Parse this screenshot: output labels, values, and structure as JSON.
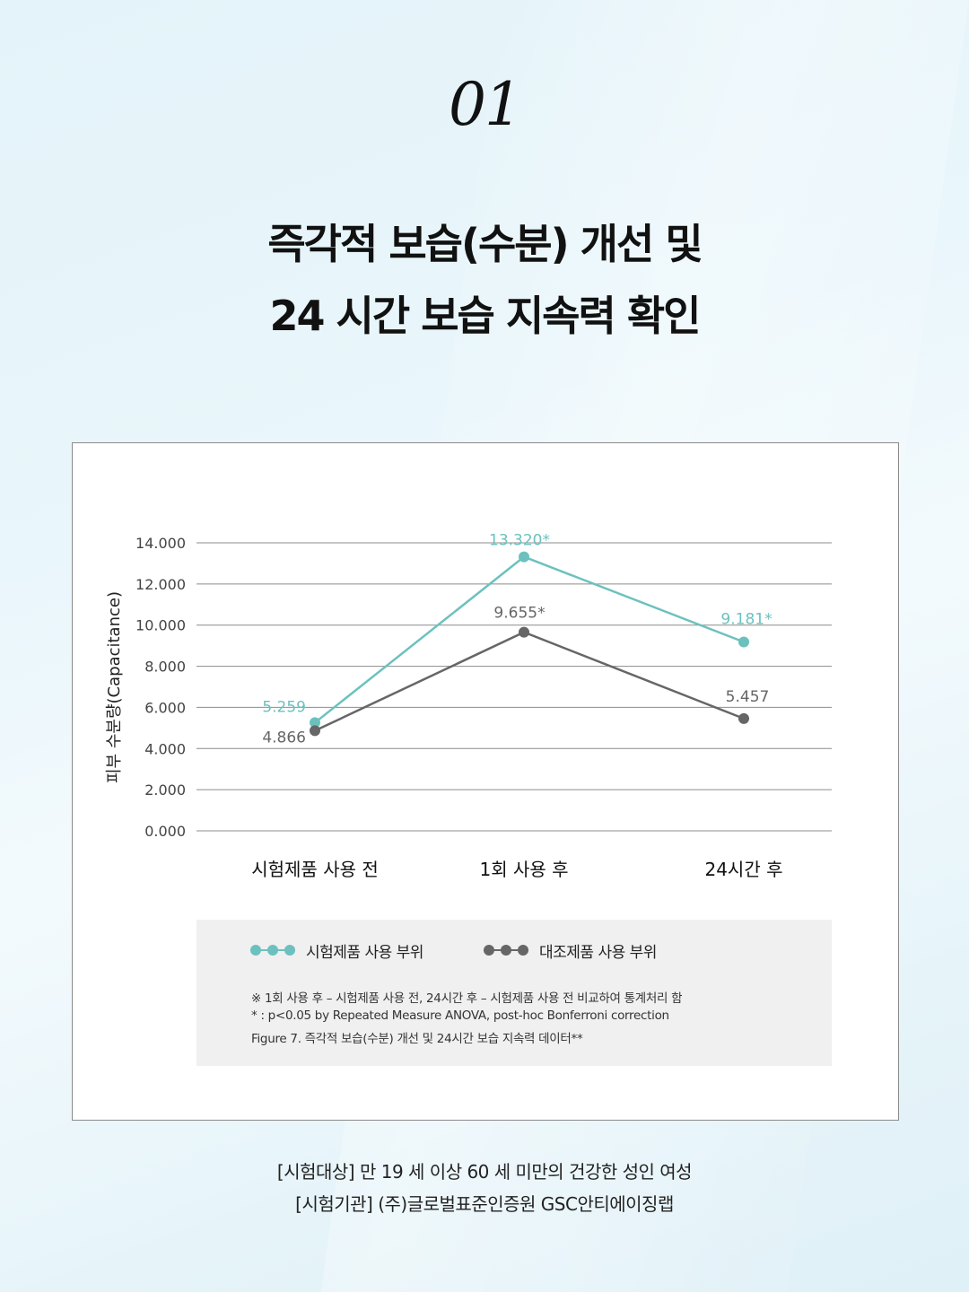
{
  "header": {
    "number": "01",
    "headline_line1": "즉각적 보습(수분) 개선 및",
    "headline_line2": "24 시간 보습 지속력 확인"
  },
  "chart_data": {
    "type": "line",
    "ylabel": "피부 수분량(Capacitance)",
    "ylim": [
      0,
      14
    ],
    "yticks": [
      "14.000",
      "12.000",
      "10.000",
      "8.000",
      "6.000",
      "4.000",
      "2.000",
      "0.000"
    ],
    "ytick_values": [
      14,
      12,
      10,
      8,
      6,
      4,
      2,
      0
    ],
    "categories": [
      "시험제품 사용 전",
      "1회 사용 후",
      "24시간 후"
    ],
    "grid": true,
    "legend_position": "bottom",
    "series": [
      {
        "name": "시험제품 사용 부위",
        "color": "#6cc1bf",
        "values": [
          5.259,
          13.32,
          9.181
        ],
        "labels": [
          "5.259",
          "13.320*",
          "9.181*"
        ]
      },
      {
        "name": "대조제품 사용 부위",
        "color": "#666666",
        "values": [
          4.866,
          9.655,
          5.457
        ],
        "labels": [
          "4.866",
          "9.655*",
          "5.457"
        ]
      }
    ]
  },
  "notes": {
    "line1": "※ 1회 사용 후 – 시험제품 사용 전, 24시간 후 – 시험제품 사용 전 비교하여 통계처리 함",
    "line2": "* : p<0.05 by Repeated Measure ANOVA, post-hoc Bonferroni correction",
    "line3": "Figure 7. 즉각적 보습(수분) 개선 및 24시간 보습 지속력 데이터**"
  },
  "footer": {
    "line1": "[시험대상] 만 19 세 이상 60 세 미만의 건강한 성인 여성",
    "line2": "[시험기관] (주)글로벌표준인증원 GSC안티에이징랩"
  }
}
